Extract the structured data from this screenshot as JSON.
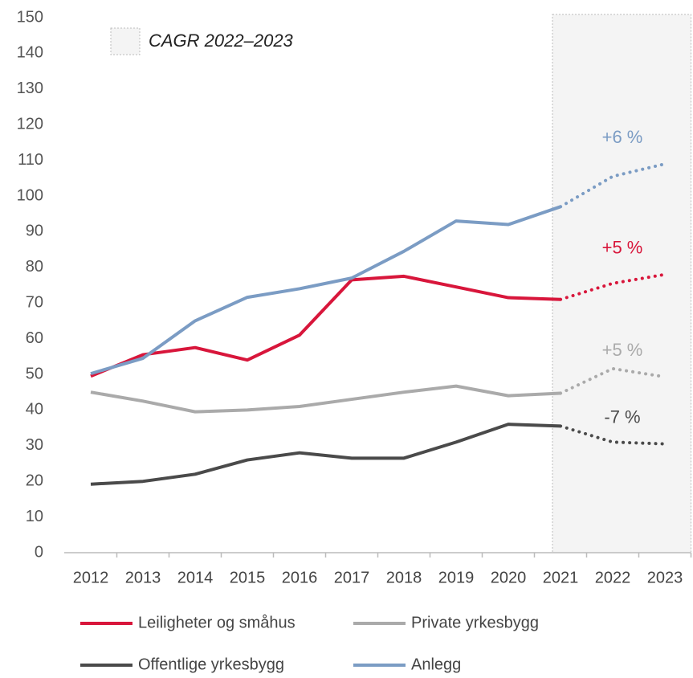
{
  "chart_data": {
    "type": "line",
    "categories": [
      "2012",
      "2013",
      "2014",
      "2015",
      "2016",
      "2017",
      "2018",
      "2019",
      "2020",
      "2021",
      "2022",
      "2023"
    ],
    "series": [
      {
        "name": "Leiligheter og småhus",
        "color": "#d8163b",
        "annotation": "+5 %",
        "values": [
          49.5,
          55.5,
          57.5,
          54,
          61,
          76.5,
          77.5,
          74.5,
          71.5,
          71,
          75.5,
          78
        ]
      },
      {
        "name": "Private yrkesbygg",
        "color": "#aaaaaa",
        "annotation": "+5 %",
        "values": [
          45,
          42.5,
          39.5,
          40,
          41,
          43,
          45,
          46.7,
          44,
          44.7,
          51.6,
          49.3
        ]
      },
      {
        "name": "Offentlige yrkesbygg",
        "color": "#4a4a4a",
        "annotation": "-7 %",
        "values": [
          19.2,
          20,
          22,
          26,
          28,
          26.5,
          26.5,
          31,
          36,
          35.5,
          31,
          30.5
        ]
      },
      {
        "name": "Anlegg",
        "color": "#7b9cc4",
        "annotation": "+6 %",
        "values": [
          50.2,
          54.5,
          65,
          71.6,
          74,
          77,
          84.5,
          93,
          92,
          97,
          105.5,
          109
        ]
      }
    ],
    "shaded_region": {
      "label": "CAGR 2022–2023",
      "from": "2021",
      "to": "2023"
    },
    "ylim": [
      0,
      150
    ],
    "yticks": [
      0,
      10,
      20,
      30,
      40,
      50,
      60,
      70,
      80,
      90,
      100,
      110,
      120,
      130,
      140,
      150
    ]
  }
}
